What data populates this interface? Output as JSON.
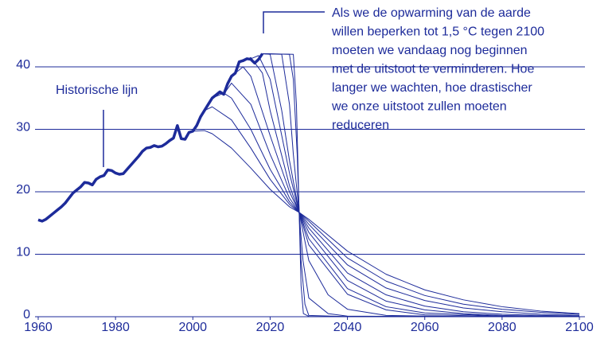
{
  "chart_data": {
    "type": "line",
    "xlim": [
      1960,
      2100
    ],
    "xticks": [
      1960,
      1980,
      2000,
      2020,
      2040,
      2060,
      2080,
      2100
    ],
    "ylim": [
      0,
      44
    ],
    "yticks": [
      0,
      10,
      20,
      30,
      40
    ],
    "grid": true,
    "annotation": [
      "Als we de opwarming van de aarde",
      "willen beperken tot 1,5 °C tegen 2100",
      "moeten we vandaag nog beginnen",
      "met de uitstoot te verminderen. Hoe",
      "langer we wachten, hoe drastischer",
      "we onze uitstoot zullen moeten",
      "reduceren"
    ],
    "series": [
      {
        "name": "Historische lijn",
        "color": "#1d2b9a",
        "x": [
          1960,
          1961,
          1962,
          1963,
          1964,
          1965,
          1966,
          1967,
          1968,
          1969,
          1970,
          1971,
          1972,
          1973,
          1974,
          1975,
          1976,
          1977,
          1978,
          1979,
          1980,
          1981,
          1982,
          1983,
          1984,
          1985,
          1986,
          1987,
          1988,
          1989,
          1990,
          1991,
          1992,
          1993,
          1994,
          1995,
          1996,
          1997,
          1998,
          1999,
          2000,
          2001,
          2002,
          2003,
          2004,
          2005,
          2006,
          2007,
          2008,
          2009,
          2010,
          2011,
          2012,
          2013,
          2014,
          2015,
          2016,
          2017,
          2018
        ],
        "values": [
          15.5,
          15.3,
          15.6,
          16.1,
          16.6,
          17.1,
          17.6,
          18.2,
          19.0,
          19.8,
          20.3,
          20.8,
          21.5,
          21.4,
          21.1,
          22.0,
          22.4,
          22.6,
          23.5,
          23.4,
          23.0,
          22.8,
          22.9,
          23.6,
          24.3,
          25.0,
          25.7,
          26.5,
          27.0,
          27.1,
          27.4,
          27.2,
          27.3,
          27.7,
          28.2,
          28.6,
          30.6,
          28.5,
          28.4,
          29.5,
          29.7,
          30.6,
          32.0,
          33.0,
          34.0,
          35.0,
          35.5,
          36.0,
          35.6,
          37.3,
          38.5,
          39.0,
          40.8,
          41.0,
          41.3,
          41.2,
          40.6,
          41.2,
          42.1
        ]
      },
      {
        "color": "#1d2b9a",
        "x": [
          2000,
          2003,
          2005,
          2010,
          2015,
          2020,
          2025,
          2027.5,
          2030,
          2040,
          2050,
          2060,
          2070,
          2080,
          2090,
          2100
        ],
        "values": [
          29.7,
          29.8,
          29.3,
          27.0,
          23.8,
          20.4,
          17.6,
          16.7,
          15.6,
          10.5,
          6.8,
          4.3,
          2.7,
          1.6,
          0.9,
          0.5
        ]
      },
      {
        "color": "#1d2b9a",
        "x": [
          2003,
          2005,
          2010,
          2015,
          2020,
          2025,
          2027.5,
          2030,
          2040,
          2050,
          2060,
          2070,
          2080,
          2090,
          2100
        ],
        "values": [
          33.0,
          33.6,
          31.5,
          27.0,
          22.0,
          18.0,
          16.7,
          15.3,
          9.4,
          5.7,
          3.4,
          2.0,
          1.2,
          0.7,
          0.4
        ]
      },
      {
        "color": "#1d2b9a",
        "x": [
          2005,
          2008,
          2010,
          2015,
          2020,
          2025,
          2027.5,
          2030,
          2040,
          2050,
          2060,
          2070,
          2080,
          2090,
          2100
        ],
        "values": [
          35.0,
          35.8,
          35.0,
          30.0,
          23.6,
          18.4,
          16.7,
          14.8,
          8.3,
          4.6,
          2.6,
          1.4,
          0.8,
          0.4,
          0.2
        ]
      },
      {
        "color": "#1d2b9a",
        "x": [
          2008,
          2010,
          2015,
          2020,
          2025,
          2027.5,
          2030,
          2040,
          2050,
          2060,
          2070,
          2080,
          2090,
          2100
        ],
        "values": [
          35.6,
          37.4,
          34.0,
          26.0,
          19.0,
          16.7,
          14.2,
          7.0,
          3.5,
          1.7,
          0.8,
          0.4,
          0.2,
          0.1
        ]
      },
      {
        "color": "#1d2b9a",
        "x": [
          2010,
          2013,
          2015,
          2020,
          2025,
          2027.5,
          2030,
          2040,
          2050,
          2060,
          2070,
          2080,
          2090,
          2100
        ],
        "values": [
          38.5,
          40.0,
          38.5,
          29.0,
          20.0,
          16.7,
          13.5,
          5.8,
          2.5,
          1.1,
          0.5,
          0.2,
          0.1,
          0.05
        ]
      },
      {
        "color": "#1d2b9a",
        "x": [
          2013,
          2015,
          2018,
          2020,
          2025,
          2027.5,
          2030,
          2040,
          2050,
          2060,
          2080,
          2100
        ],
        "values": [
          40.8,
          41.5,
          39.0,
          33.0,
          21.0,
          16.7,
          12.5,
          4.5,
          1.6,
          0.6,
          0.1,
          0.02
        ]
      },
      {
        "color": "#1d2b9a",
        "x": [
          2015,
          2017,
          2020,
          2025,
          2027.5,
          2030,
          2040,
          2050,
          2060,
          2080,
          2100
        ],
        "values": [
          41.3,
          41.8,
          38.0,
          23.0,
          16.7,
          11.5,
          3.6,
          1.1,
          0.3,
          0.05,
          0.01
        ]
      },
      {
        "color": "#1d2b9a",
        "x": [
          2018,
          2020,
          2023,
          2025,
          2027.5,
          2030,
          2035,
          2040,
          2050,
          2070,
          2100
        ],
        "values": [
          42.1,
          42.0,
          33.0,
          25.0,
          16.7,
          9.0,
          3.5,
          1.2,
          0.2,
          0.02,
          0
        ]
      },
      {
        "color": "#1d2b9a",
        "x": [
          2018,
          2023,
          2025,
          2026,
          2027.5,
          2028.5,
          2030,
          2035,
          2040,
          2060,
          2100
        ],
        "values": [
          42.1,
          42.0,
          34.0,
          26.0,
          16.7,
          9.0,
          3.0,
          0.5,
          0.1,
          0.02,
          0
        ]
      },
      {
        "color": "#1d2b9a",
        "x": [
          2018,
          2025,
          2026,
          2027,
          2027.5,
          2028,
          2029,
          2030,
          2040,
          2100
        ],
        "values": [
          42.1,
          42.0,
          38.0,
          26.0,
          16.7,
          9.0,
          2.0,
          0.2,
          0.02,
          0
        ]
      },
      {
        "color": "#1d2b9a",
        "x": [
          2018,
          2026,
          2026.8,
          2027.5,
          2028,
          2028.6,
          2030,
          2100
        ],
        "values": [
          42.1,
          42.0,
          34.0,
          16.7,
          5.0,
          0.5,
          0.05,
          0
        ]
      }
    ]
  }
}
